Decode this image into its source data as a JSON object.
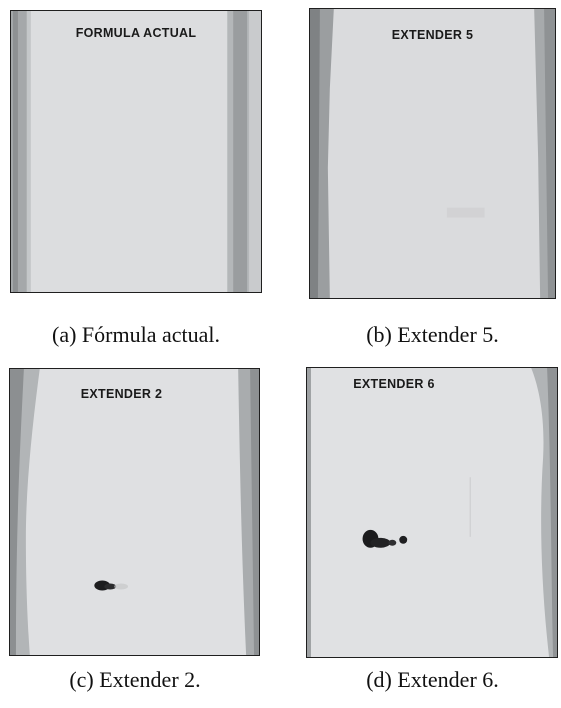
{
  "panels": [
    {
      "id": "a",
      "photo_label": "FORMULA ACTUAL",
      "caption": "(a) Fórmula actual."
    },
    {
      "id": "b",
      "photo_label": "EXTENDER 5",
      "caption": "(b) Extender 5."
    },
    {
      "id": "c",
      "photo_label": "EXTENDER 2",
      "caption": "(c) Extender 2."
    },
    {
      "id": "d",
      "photo_label": "EXTENDER 6",
      "caption": "(d) Extender 6."
    }
  ],
  "colors": {
    "paper": "#dcdddf",
    "edge_dark": "#8f9294",
    "edge_mid": "#b6b9bb",
    "stain": "#1d1d1f"
  }
}
